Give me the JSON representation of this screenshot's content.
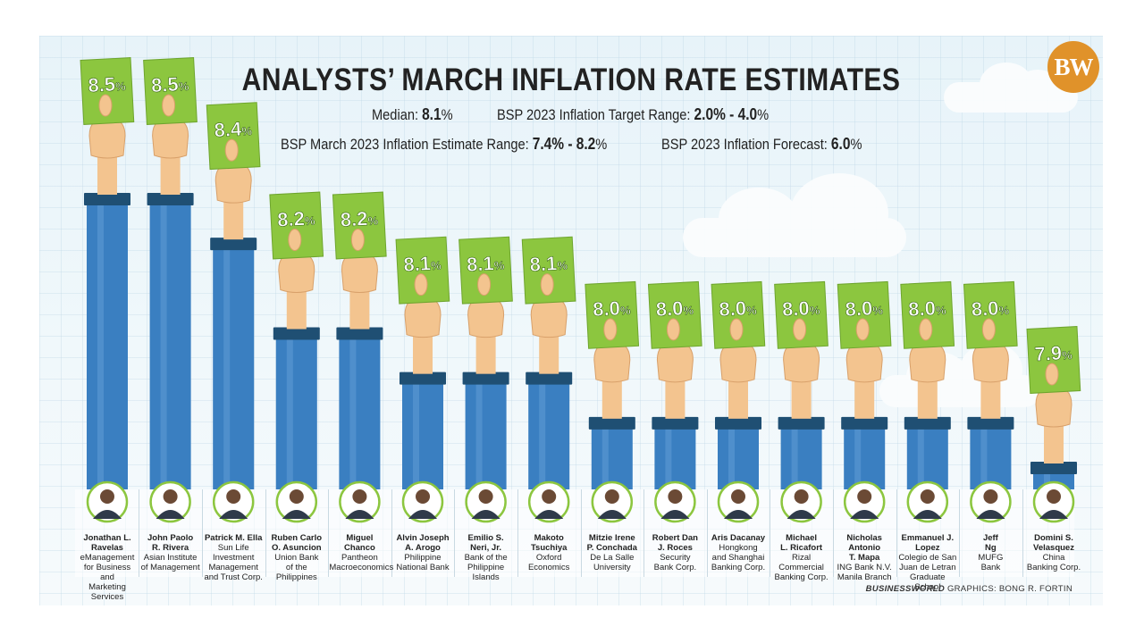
{
  "header": {
    "title": "ANALYSTS’ MARCH INFLATION RATE ESTIMATES",
    "logo_text": "BW"
  },
  "stats": {
    "median_label": "Median: ",
    "median_value": "8.1",
    "target_label": "BSP 2023 Inflation Target Range: ",
    "target_value": "2.0% - 4.0",
    "estimate_label": "BSP March 2023 Inflation Estimate Range: ",
    "estimate_value": "7.4% - 8.2",
    "forecast_label": "BSP 2023 Inflation Forecast: ",
    "forecast_value": "6.0",
    "percent": "%"
  },
  "credit": {
    "source": "BUSINESSWORLD",
    "text": " GRAPHICS: BONG R. FORTIN"
  },
  "colors": {
    "sleeve": "#3a7fc1",
    "cuff": "#1f4f73",
    "card": "#8cc63f",
    "skin": "#f3c48f",
    "photo_ring": "#8cc63f"
  },
  "chart_data": {
    "type": "bar",
    "categories": [
      "Jonathan L. Ravelas",
      "John Paolo R. Rivera",
      "Patrick M. Ella",
      "Ruben Carlo O. Asuncion",
      "Miguel Chanco",
      "Alvin Joseph A. Arogo",
      "Emilio S. Neri, Jr.",
      "Makoto Tsuchiya",
      "Mitzie Irene P. Conchada",
      "Robert Dan J. Roces",
      "Aris Dacanay",
      "Michael L. Ricafort",
      "Nicholas Antonio T. Mapa",
      "Emmanuel J. Lopez",
      "Jeff Ng",
      "Domini S. Velasquez"
    ],
    "name_lines": [
      [
        "Jonathan L. Ravelas"
      ],
      [
        "John Paolo",
        "R. Rivera"
      ],
      [
        "Patrick M. Ella"
      ],
      [
        "Ruben Carlo",
        "O. Asuncion"
      ],
      [
        "Miguel",
        "Chanco"
      ],
      [
        "Alvin Joseph",
        "A. Arogo"
      ],
      [
        "Emilio S.",
        "Neri, Jr."
      ],
      [
        "Makoto",
        "Tsuchiya"
      ],
      [
        "Mitzie Irene",
        "P. Conchada"
      ],
      [
        "Robert Dan",
        "J. Roces"
      ],
      [
        "Aris Dacanay"
      ],
      [
        "Michael",
        "L. Ricafort"
      ],
      [
        "Nicholas Antonio",
        "T. Mapa"
      ],
      [
        "Emmanuel J. Lopez"
      ],
      [
        "Jeff",
        "Ng"
      ],
      [
        "Domini S.",
        "Velasquez"
      ]
    ],
    "org_lines": [
      [
        "eManagement",
        "for Business and",
        "Marketing Services"
      ],
      [
        "Asian Institute",
        "of Management"
      ],
      [
        "Sun Life Investment",
        "Management",
        "and Trust Corp."
      ],
      [
        "Union Bank",
        "of the Philippines"
      ],
      [
        "Pantheon",
        "Macroeconomics"
      ],
      [
        "Philippine",
        "National Bank"
      ],
      [
        "Bank of the",
        "Philippine Islands"
      ],
      [
        "Oxford",
        "Economics"
      ],
      [
        "De La Salle",
        "University"
      ],
      [
        "Security",
        "Bank Corp."
      ],
      [
        "Hongkong",
        "and Shanghai",
        "Banking Corp."
      ],
      [
        "Rizal Commercial",
        "Banking Corp."
      ],
      [
        "ING Bank N.V.",
        "Manila Branch"
      ],
      [
        "Colegio de San",
        "Juan de Letran",
        "Graduate School"
      ],
      [
        "MUFG",
        "Bank"
      ],
      [
        "China",
        "Banking Corp."
      ]
    ],
    "values": [
      8.5,
      8.5,
      8.4,
      8.2,
      8.2,
      8.1,
      8.1,
      8.1,
      8.0,
      8.0,
      8.0,
      8.0,
      8.0,
      8.0,
      8.0,
      7.9
    ],
    "data_labels": [
      "8.5",
      "8.5",
      "8.4",
      "8.2",
      "8.2",
      "8.1",
      "8.1",
      "8.1",
      "8.0",
      "8.0",
      "8.0",
      "8.0",
      "8.0",
      "8.0",
      "8.0",
      "7.9"
    ],
    "unit": "%",
    "grid": true
  }
}
